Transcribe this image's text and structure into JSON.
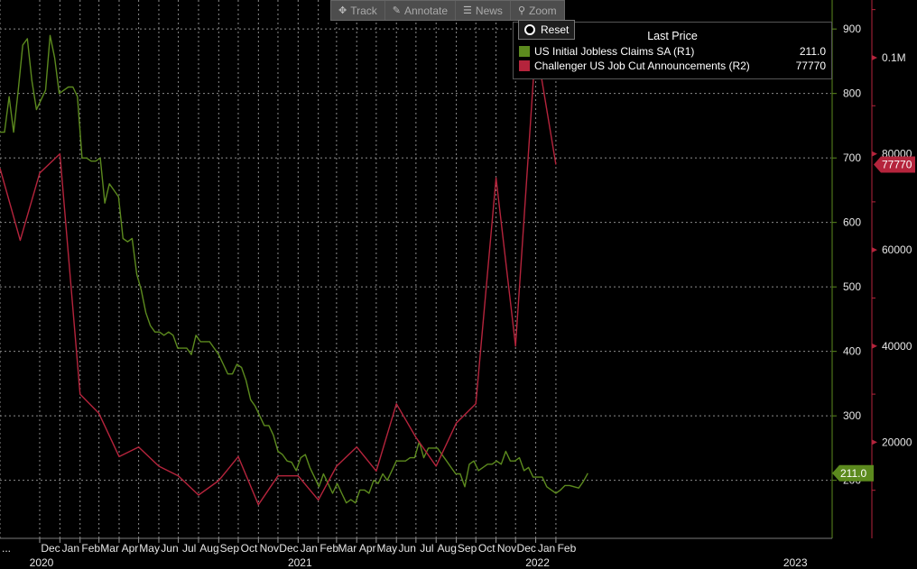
{
  "toolbar": {
    "track": {
      "label": "Track",
      "icon": "crosshair-icon"
    },
    "annotate": {
      "label": "Annotate",
      "icon": "pencil-icon"
    },
    "news": {
      "label": "News",
      "icon": "news-icon"
    },
    "zoom": {
      "label": "Zoom",
      "icon": "magnifier-icon"
    }
  },
  "reset_label": "Reset",
  "legend": {
    "title": "Last Price",
    "items": [
      {
        "name": "US Initial Jobless Claims SA  (R1)",
        "value": "211.0",
        "color": "#5c8a1e"
      },
      {
        "name": "Challenger US Job Cut Announcements  (R2)",
        "value": "77770",
        "color": "#b5243c"
      }
    ]
  },
  "chart_data": {
    "type": "line",
    "x_range": [
      "2019-10-01",
      "2023-03-31"
    ],
    "x_labels": [
      {
        "label": "...",
        "date": "2019-10-01"
      },
      {
        "label": "Dec",
        "date": "2019-12-01"
      },
      {
        "label": "Jan",
        "date": "2020-01-01"
      },
      {
        "label": "Feb",
        "date": "2020-02-01"
      },
      {
        "label": "Mar",
        "date": "2020-03-01"
      },
      {
        "label": "Apr",
        "date": "2020-04-01"
      },
      {
        "label": "May",
        "date": "2020-05-01"
      },
      {
        "label": "Jun",
        "date": "2020-06-01"
      },
      {
        "label": "Jul",
        "date": "2020-07-01"
      },
      {
        "label": "Aug",
        "date": "2020-08-01"
      },
      {
        "label": "Sep",
        "date": "2020-09-01"
      },
      {
        "label": "Oct",
        "date": "2020-10-01"
      },
      {
        "label": "Nov",
        "date": "2020-11-01"
      },
      {
        "label": "Dec",
        "date": "2020-12-01"
      },
      {
        "label": "Jan",
        "date": "2021-01-01"
      },
      {
        "label": "Feb",
        "date": "2021-02-01"
      },
      {
        "label": "Mar",
        "date": "2021-03-01"
      },
      {
        "label": "Apr",
        "date": "2021-04-01"
      },
      {
        "label": "May",
        "date": "2021-05-01"
      },
      {
        "label": "Jun",
        "date": "2021-06-01"
      },
      {
        "label": "Jul",
        "date": "2021-07-01"
      },
      {
        "label": "Aug",
        "date": "2021-08-01"
      },
      {
        "label": "Sep",
        "date": "2021-09-01"
      },
      {
        "label": "Oct",
        "date": "2021-10-01"
      },
      {
        "label": "Nov",
        "date": "2021-11-01"
      },
      {
        "label": "Dec",
        "date": "2021-12-01"
      },
      {
        "label": "Jan",
        "date": "2022-01-01"
      },
      {
        "label": "Feb",
        "date": "2022-02-01"
      }
    ],
    "x_year_labels": [
      {
        "label": "2020",
        "date": "2019-12-01"
      },
      {
        "label": "2021",
        "date": "2021-01-01"
      },
      {
        "label": "2022",
        "date": "2022-01-01"
      },
      {
        "label": "2023",
        "date": "2023-02-01"
      }
    ],
    "grid": true,
    "y_axes": [
      {
        "id": "R1",
        "range": [
          110,
          945
        ],
        "ticks": [
          "200",
          "300",
          "400",
          "500",
          "600",
          "700",
          "800",
          "900"
        ],
        "tick_values": [
          200,
          300,
          400,
          500,
          600,
          700,
          800,
          900
        ],
        "color": "#5c8a1e"
      },
      {
        "id": "R2",
        "range": [
          0,
          112000
        ],
        "ticks": [
          "20000",
          "40000",
          "60000",
          "80000",
          "0.1M"
        ],
        "tick_values": [
          20000,
          40000,
          60000,
          80000,
          100000
        ],
        "color": "#b5243c"
      }
    ],
    "series": [
      {
        "name": "US Initial Jobless Claims SA  (R1)",
        "axis": "R1",
        "color": "#5c8a1e",
        "last_value": "211.0",
        "points": [
          [
            "2019-10-01",
            740
          ],
          [
            "2019-10-08",
            740
          ],
          [
            "2019-10-15",
            795
          ],
          [
            "2019-10-22",
            740
          ],
          [
            "2019-10-29",
            805
          ],
          [
            "2019-11-05",
            875
          ],
          [
            "2019-11-12",
            885
          ],
          [
            "2019-11-19",
            820
          ],
          [
            "2019-11-26",
            775
          ],
          [
            "2019-12-03",
            790
          ],
          [
            "2019-12-10",
            805
          ],
          [
            "2019-12-17",
            890
          ],
          [
            "2019-12-24",
            855
          ],
          [
            "2019-12-31",
            800
          ],
          [
            "2020-01-07",
            805
          ],
          [
            "2020-01-14",
            810
          ],
          [
            "2020-01-21",
            810
          ],
          [
            "2020-01-28",
            795
          ],
          [
            "2020-02-04",
            700
          ],
          [
            "2020-02-11",
            700
          ],
          [
            "2020-02-18",
            695
          ],
          [
            "2020-02-25",
            695
          ],
          [
            "2020-03-03",
            700
          ],
          [
            "2020-03-10",
            630
          ],
          [
            "2020-03-17",
            660
          ],
          [
            "2020-03-24",
            650
          ],
          [
            "2020-03-31",
            640
          ],
          [
            "2020-04-07",
            575
          ],
          [
            "2020-04-14",
            570
          ],
          [
            "2020-04-21",
            575
          ],
          [
            "2020-04-28",
            520
          ],
          [
            "2020-05-05",
            495
          ],
          [
            "2020-05-12",
            460
          ],
          [
            "2020-05-19",
            440
          ],
          [
            "2020-05-26",
            430
          ],
          [
            "2020-06-02",
            430
          ],
          [
            "2020-06-09",
            425
          ],
          [
            "2020-06-16",
            430
          ],
          [
            "2020-06-23",
            425
          ],
          [
            "2020-06-30",
            405
          ],
          [
            "2020-07-07",
            405
          ],
          [
            "2020-07-14",
            405
          ],
          [
            "2020-07-21",
            395
          ],
          [
            "2020-07-28",
            425
          ],
          [
            "2020-08-04",
            415
          ],
          [
            "2020-08-11",
            415
          ],
          [
            "2020-08-18",
            415
          ],
          [
            "2020-08-25",
            405
          ],
          [
            "2020-09-01",
            395
          ],
          [
            "2020-09-08",
            380
          ],
          [
            "2020-09-15",
            365
          ],
          [
            "2020-09-22",
            365
          ],
          [
            "2020-09-29",
            380
          ],
          [
            "2020-10-06",
            375
          ],
          [
            "2020-10-13",
            355
          ],
          [
            "2020-10-20",
            325
          ],
          [
            "2020-10-27",
            315
          ],
          [
            "2020-11-03",
            300
          ],
          [
            "2020-11-10",
            285
          ],
          [
            "2020-11-17",
            285
          ],
          [
            "2020-11-24",
            270
          ],
          [
            "2020-12-01",
            245
          ],
          [
            "2020-12-08",
            240
          ],
          [
            "2020-12-15",
            230
          ],
          [
            "2020-12-22",
            228
          ],
          [
            "2020-12-29",
            215
          ],
          [
            "2021-01-05",
            235
          ],
          [
            "2021-01-12",
            240
          ],
          [
            "2021-01-19",
            220
          ],
          [
            "2021-01-26",
            205
          ],
          [
            "2021-02-02",
            190
          ],
          [
            "2021-02-09",
            210
          ],
          [
            "2021-02-16",
            195
          ],
          [
            "2021-02-23",
            180
          ],
          [
            "2021-03-02",
            195
          ],
          [
            "2021-03-09",
            180
          ],
          [
            "2021-03-16",
            165
          ],
          [
            "2021-03-23",
            170
          ],
          [
            "2021-03-30",
            165
          ],
          [
            "2021-04-06",
            185
          ],
          [
            "2021-04-13",
            185
          ],
          [
            "2021-04-20",
            180
          ],
          [
            "2021-04-27",
            200
          ],
          [
            "2021-05-04",
            195
          ],
          [
            "2021-05-11",
            210
          ],
          [
            "2021-05-18",
            200
          ],
          [
            "2021-05-25",
            215
          ],
          [
            "2021-06-01",
            230
          ],
          [
            "2021-06-08",
            230
          ],
          [
            "2021-06-15",
            230
          ],
          [
            "2021-06-22",
            235
          ],
          [
            "2021-06-29",
            235
          ],
          [
            "2021-07-06",
            260
          ],
          [
            "2021-07-13",
            235
          ],
          [
            "2021-07-20",
            250
          ],
          [
            "2021-07-27",
            250
          ],
          [
            "2021-08-03",
            250
          ],
          [
            "2021-08-10",
            240
          ],
          [
            "2021-08-17",
            230
          ],
          [
            "2021-08-24",
            220
          ],
          [
            "2021-08-31",
            210
          ],
          [
            "2021-09-07",
            210
          ],
          [
            "2021-09-14",
            190
          ],
          [
            "2021-09-21",
            225
          ],
          [
            "2021-09-28",
            230
          ],
          [
            "2021-10-05",
            215
          ],
          [
            "2021-10-12",
            220
          ],
          [
            "2021-10-19",
            225
          ],
          [
            "2021-10-26",
            225
          ],
          [
            "2021-11-02",
            230
          ],
          [
            "2021-11-09",
            225
          ],
          [
            "2021-11-16",
            245
          ],
          [
            "2021-11-23",
            230
          ],
          [
            "2021-11-30",
            230
          ],
          [
            "2021-12-07",
            235
          ],
          [
            "2021-12-14",
            215
          ],
          [
            "2021-12-21",
            220
          ],
          [
            "2021-12-28",
            205
          ],
          [
            "2022-01-04",
            205
          ],
          [
            "2022-01-11",
            205
          ],
          [
            "2022-01-18",
            190
          ],
          [
            "2022-01-25",
            185
          ],
          [
            "2022-02-01",
            180
          ],
          [
            "2022-02-08",
            185
          ],
          [
            "2022-02-15",
            192
          ],
          [
            "2022-02-22",
            192
          ],
          [
            "2022-03-01",
            190
          ],
          [
            "2022-03-08",
            188
          ],
          [
            "2022-03-15",
            198
          ],
          [
            "2022-03-22",
            211
          ]
        ]
      },
      {
        "name": "Challenger US Job Cut Announcements  (R2)",
        "axis": "R2",
        "color": "#b5243c",
        "last_value": "77770",
        "points": [
          [
            "2019-10-01",
            77000
          ],
          [
            "2019-11-01",
            62000
          ],
          [
            "2019-12-01",
            76000
          ],
          [
            "2020-01-01",
            80000
          ],
          [
            "2020-02-01",
            30000
          ],
          [
            "2020-03-01",
            26000
          ],
          [
            "2020-04-01",
            17000
          ],
          [
            "2020-05-01",
            19000
          ],
          [
            "2020-06-01",
            15000
          ],
          [
            "2020-07-01",
            13000
          ],
          [
            "2020-08-01",
            9000
          ],
          [
            "2020-09-01",
            12000
          ],
          [
            "2020-10-01",
            17000
          ],
          [
            "2020-11-01",
            7000
          ],
          [
            "2020-12-01",
            13000
          ],
          [
            "2021-01-01",
            13000
          ],
          [
            "2021-02-01",
            8000
          ],
          [
            "2021-03-01",
            15000
          ],
          [
            "2021-04-01",
            19000
          ],
          [
            "2021-05-01",
            14000
          ],
          [
            "2021-06-01",
            28000
          ],
          [
            "2021-07-01",
            21000
          ],
          [
            "2021-08-01",
            15000
          ],
          [
            "2021-09-01",
            24000
          ],
          [
            "2021-10-01",
            28000
          ],
          [
            "2021-11-01",
            75000
          ],
          [
            "2021-12-01",
            40000
          ],
          [
            "2022-01-01",
            103000
          ],
          [
            "2022-02-01",
            77770
          ]
        ]
      }
    ]
  }
}
